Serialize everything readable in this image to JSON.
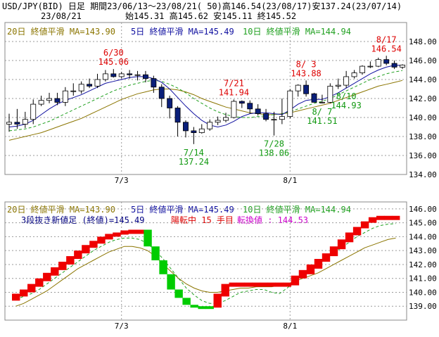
{
  "header": {
    "line1": "USD/JPY(BID) 日足 期間23/06/13～23/08/21( 50)高146.54(23/08/17)安137.24(23/07/14)",
    "date": "23/08/21",
    "ohlc": "始145.31 高145.62 安145.11 終145.52"
  },
  "colors": {
    "ma20": "#8B7500",
    "ma5": "#1010A0",
    "ma10": "#20A020",
    "up_candle": "#ffffff",
    "down_candle": "#0A1F7A",
    "up_brick": "#EE0000",
    "down_brick": "#00CC00",
    "annot_high": "#DD0000",
    "annot_low": "#119911",
    "status": "#DD0000",
    "turn": "#CC00CC"
  },
  "top_chart": {
    "legend": {
      "ma20": "20日 終値平滑 MA=143.90",
      "ma5": "5日 終値平滑 MA=145.49",
      "ma10": "10日 終値平滑 MA=144.94"
    },
    "ylim": [
      134,
      150
    ],
    "yticks": [
      "134.00",
      "136.00",
      "138.00",
      "140.00",
      "142.00",
      "144.00",
      "146.00",
      "148.00"
    ],
    "xticks": [
      "7/3",
      "8/1"
    ],
    "annotations": [
      {
        "date": "6/30",
        "value": "145.06",
        "kind": "high"
      },
      {
        "date": "7/21",
        "value": "141.94",
        "kind": "high"
      },
      {
        "date": "8/ 3",
        "value": "143.88",
        "kind": "high"
      },
      {
        "date": "8/17",
        "value": "146.54",
        "kind": "high"
      },
      {
        "date": "7/14",
        "value": "137.24",
        "kind": "low"
      },
      {
        "date": "7/28",
        "value": "138.06",
        "kind": "low"
      },
      {
        "date": "8/ 7",
        "value": "141.51",
        "kind": "low"
      },
      {
        "date": "8/10",
        "value": "144.93",
        "kind": "low"
      }
    ]
  },
  "bottom_chart": {
    "legend": {
      "ma20": "20日 終値平滑 MA=143.90",
      "ma5": "5日 終値平滑 MA=145.49",
      "ma10": "10日 終値平滑 MA=144.94"
    },
    "status_prefix": "3段抜き新値足 (終値)=145.49",
    "status_mid": "陽転中 15 手目",
    "status_turn": "転換値 : 144.53",
    "ylim": [
      138,
      146.5
    ],
    "yticks": [
      "139.00",
      "140.00",
      "141.00",
      "142.00",
      "143.00",
      "144.00",
      "145.00",
      "146.00"
    ],
    "xticks": [
      "7/3",
      "8/1"
    ]
  },
  "chart_data": [
    {
      "type": "candlestick",
      "title": "USD/JPY(BID) 日足",
      "dates": [
        "6/13",
        "6/14",
        "6/15",
        "6/16",
        "6/19",
        "6/20",
        "6/21",
        "6/22",
        "6/23",
        "6/26",
        "6/27",
        "6/28",
        "6/29",
        "6/30",
        "7/3",
        "7/4",
        "7/5",
        "7/6",
        "7/7",
        "7/10",
        "7/11",
        "7/12",
        "7/13",
        "7/14",
        "7/17",
        "7/18",
        "7/19",
        "7/20",
        "7/21",
        "7/24",
        "7/25",
        "7/26",
        "7/27",
        "7/28",
        "7/31",
        "8/1",
        "8/2",
        "8/3",
        "8/4",
        "8/7",
        "8/8",
        "8/9",
        "8/10",
        "8/11",
        "8/14",
        "8/15",
        "8/16",
        "8/17",
        "8/18",
        "8/21"
      ],
      "open": [
        139.3,
        139.5,
        139.3,
        139.8,
        141.4,
        141.8,
        142.0,
        141.6,
        142.8,
        142.8,
        143.5,
        143.3,
        144.0,
        144.6,
        144.3,
        144.6,
        144.5,
        144.5,
        144.1,
        143.2,
        142.0,
        141.0,
        139.5,
        138.6,
        138.4,
        138.8,
        139.5,
        139.7,
        140.0,
        141.7,
        141.5,
        140.9,
        140.4,
        139.8,
        139.8,
        140.1,
        142.8,
        143.4,
        142.5,
        141.6,
        141.6,
        143.3,
        143.4,
        144.3,
        144.7,
        145.4,
        145.4,
        146.1,
        145.7,
        145.3
      ],
      "high": [
        140.4,
        140.9,
        140.6,
        141.9,
        142.3,
        142.6,
        142.6,
        143.2,
        143.6,
        143.8,
        144.1,
        144.6,
        145.0,
        145.1,
        144.8,
        145.0,
        144.9,
        144.9,
        144.4,
        143.5,
        142.3,
        141.2,
        139.7,
        139.0,
        139.3,
        139.8,
        140.1,
        140.5,
        141.9,
        141.8,
        141.8,
        141.4,
        140.9,
        140.6,
        142.0,
        143.0,
        143.5,
        143.9,
        142.6,
        142.4,
        143.6,
        144.1,
        144.9,
        145.0,
        145.5,
        145.9,
        146.3,
        146.5,
        146.0,
        145.6
      ],
      "low": [
        138.5,
        138.8,
        138.9,
        139.3,
        141.2,
        141.5,
        141.3,
        141.2,
        142.3,
        142.5,
        143.1,
        143.1,
        143.8,
        144.2,
        144.1,
        144.1,
        143.9,
        143.7,
        142.6,
        141.1,
        139.9,
        138.0,
        137.9,
        137.2,
        138.3,
        138.6,
        139.2,
        139.5,
        139.9,
        141.0,
        140.4,
        140.2,
        139.6,
        138.1,
        139.3,
        139.9,
        142.2,
        142.2,
        141.6,
        141.5,
        141.5,
        143.0,
        143.1,
        144.1,
        144.5,
        145.2,
        145.3,
        145.5,
        145.1,
        145.1
      ],
      "close": [
        139.5,
        139.3,
        139.8,
        141.4,
        141.8,
        142.0,
        141.6,
        142.8,
        142.8,
        143.5,
        143.3,
        144.0,
        144.6,
        144.3,
        144.6,
        144.5,
        144.5,
        144.1,
        143.2,
        142.0,
        141.0,
        139.5,
        138.6,
        138.4,
        138.8,
        139.5,
        139.7,
        140.0,
        141.7,
        141.5,
        140.9,
        140.4,
        139.8,
        139.8,
        140.1,
        142.8,
        143.4,
        142.5,
        141.6,
        141.6,
        143.3,
        143.4,
        144.3,
        144.7,
        145.4,
        145.4,
        146.1,
        145.7,
        145.3,
        145.52
      ],
      "ma5": [
        139.0,
        139.1,
        139.3,
        139.7,
        140.3,
        140.9,
        141.4,
        141.8,
        142.1,
        142.4,
        142.8,
        143.2,
        143.6,
        143.8,
        144.0,
        144.2,
        144.3,
        144.3,
        144.1,
        143.7,
        143.0,
        142.1,
        141.2,
        140.4,
        139.7,
        139.2,
        139.0,
        139.2,
        139.6,
        140.1,
        140.4,
        140.5,
        140.5,
        140.4,
        140.3,
        140.8,
        141.4,
        141.8,
        141.9,
        141.9,
        142.2,
        142.6,
        143.1,
        143.6,
        144.1,
        144.6,
        145.0,
        145.3,
        145.5,
        145.49
      ],
      "ma10": [
        138.6,
        138.7,
        138.8,
        139.0,
        139.3,
        139.6,
        140.0,
        140.4,
        140.8,
        141.2,
        141.6,
        142.0,
        142.4,
        142.8,
        143.1,
        143.4,
        143.6,
        143.8,
        143.9,
        143.8,
        143.5,
        143.1,
        142.6,
        142.0,
        141.5,
        141.0,
        140.6,
        140.3,
        140.1,
        140.0,
        140.0,
        140.1,
        140.2,
        140.3,
        140.4,
        140.6,
        140.9,
        141.2,
        141.5,
        141.7,
        142.0,
        142.4,
        142.8,
        143.2,
        143.6,
        144.0,
        144.3,
        144.6,
        144.8,
        144.94
      ],
      "ma20": [
        137.6,
        137.8,
        138.0,
        138.2,
        138.4,
        138.7,
        139.0,
        139.3,
        139.6,
        139.9,
        140.3,
        140.7,
        141.1,
        141.5,
        141.9,
        142.2,
        142.5,
        142.7,
        142.9,
        143.0,
        143.0,
        142.9,
        142.7,
        142.4,
        142.0,
        141.7,
        141.4,
        141.1,
        140.9,
        140.7,
        140.5,
        140.4,
        140.3,
        140.3,
        140.4,
        140.5,
        140.7,
        140.9,
        141.1,
        141.3,
        141.5,
        141.8,
        142.1,
        142.4,
        142.7,
        143.0,
        143.3,
        143.5,
        143.7,
        143.9
      ],
      "ylim": [
        134,
        150
      ]
    },
    {
      "type": "bar",
      "subtype": "new price three-line break (3段抜き新値足)",
      "bricks": [
        {
          "i": 0,
          "lo": 139.4,
          "hi": 139.9,
          "up": true
        },
        {
          "i": 1,
          "lo": 139.7,
          "hi": 140.2,
          "up": true
        },
        {
          "i": 2,
          "lo": 140.0,
          "hi": 140.6,
          "up": true
        },
        {
          "i": 3,
          "lo": 140.4,
          "hi": 141.0,
          "up": true
        },
        {
          "i": 4,
          "lo": 140.8,
          "hi": 141.4,
          "up": true
        },
        {
          "i": 5,
          "lo": 141.2,
          "hi": 141.8,
          "up": true
        },
        {
          "i": 6,
          "lo": 141.6,
          "hi": 142.2,
          "up": true
        },
        {
          "i": 7,
          "lo": 142.0,
          "hi": 142.6,
          "up": true
        },
        {
          "i": 8,
          "lo": 142.4,
          "hi": 143.0,
          "up": true
        },
        {
          "i": 9,
          "lo": 142.8,
          "hi": 143.4,
          "up": true
        },
        {
          "i": 10,
          "lo": 143.2,
          "hi": 143.7,
          "up": true
        },
        {
          "i": 11,
          "lo": 143.5,
          "hi": 144.0,
          "up": true
        },
        {
          "i": 12,
          "lo": 143.8,
          "hi": 144.2,
          "up": true
        },
        {
          "i": 13,
          "lo": 144.0,
          "hi": 144.3,
          "up": true
        },
        {
          "i": 14,
          "lo": 144.15,
          "hi": 144.45,
          "up": true
        },
        {
          "i": 15,
          "lo": 144.2,
          "hi": 144.5,
          "up": true
        },
        {
          "i": 16,
          "lo": 144.2,
          "hi": 144.5,
          "up": true
        },
        {
          "i": 17,
          "lo": 143.3,
          "hi": 144.5,
          "up": false
        },
        {
          "i": 18,
          "lo": 142.3,
          "hi": 143.3,
          "up": false
        },
        {
          "i": 19,
          "lo": 141.3,
          "hi": 142.3,
          "up": false
        },
        {
          "i": 20,
          "lo": 140.2,
          "hi": 141.3,
          "up": false
        },
        {
          "i": 21,
          "lo": 139.6,
          "hi": 140.2,
          "up": false
        },
        {
          "i": 22,
          "lo": 139.1,
          "hi": 139.6,
          "up": false
        },
        {
          "i": 23,
          "lo": 138.9,
          "hi": 139.1,
          "up": false
        },
        {
          "i": 24,
          "lo": 138.8,
          "hi": 139.0,
          "up": false
        },
        {
          "i": 25,
          "lo": 138.8,
          "hi": 139.0,
          "up": false
        },
        {
          "i": 26,
          "lo": 138.9,
          "hi": 139.9,
          "up": true
        },
        {
          "i": 27,
          "lo": 139.7,
          "hi": 140.6,
          "up": true
        },
        {
          "i": 28,
          "lo": 140.4,
          "hi": 140.7,
          "up": true
        },
        {
          "i": 29,
          "lo": 140.4,
          "hi": 140.7,
          "up": true
        },
        {
          "i": 30,
          "lo": 140.4,
          "hi": 140.7,
          "up": true
        },
        {
          "i": 31,
          "lo": 140.4,
          "hi": 140.7,
          "up": true
        },
        {
          "i": 32,
          "lo": 140.4,
          "hi": 140.7,
          "up": true
        },
        {
          "i": 33,
          "lo": 140.4,
          "hi": 140.7,
          "up": true
        },
        {
          "i": 34,
          "lo": 140.4,
          "hi": 140.7,
          "up": true
        },
        {
          "i": 35,
          "lo": 140.4,
          "hi": 140.7,
          "up": true
        },
        {
          "i": 36,
          "lo": 140.5,
          "hi": 141.2,
          "up": true
        },
        {
          "i": 37,
          "lo": 141.0,
          "hi": 141.6,
          "up": true
        },
        {
          "i": 38,
          "lo": 141.3,
          "hi": 142.0,
          "up": true
        },
        {
          "i": 39,
          "lo": 141.7,
          "hi": 142.4,
          "up": true
        },
        {
          "i": 40,
          "lo": 142.2,
          "hi": 142.8,
          "up": true
        },
        {
          "i": 41,
          "lo": 142.6,
          "hi": 143.3,
          "up": true
        },
        {
          "i": 42,
          "lo": 143.1,
          "hi": 143.8,
          "up": true
        },
        {
          "i": 43,
          "lo": 143.6,
          "hi": 144.3,
          "up": true
        },
        {
          "i": 44,
          "lo": 144.1,
          "hi": 144.7,
          "up": true
        },
        {
          "i": 45,
          "lo": 144.6,
          "hi": 145.1,
          "up": true
        },
        {
          "i": 46,
          "lo": 145.0,
          "hi": 145.4,
          "up": true
        },
        {
          "i": 47,
          "lo": 145.2,
          "hi": 145.5,
          "up": true
        },
        {
          "i": 48,
          "lo": 145.2,
          "hi": 145.5,
          "up": true
        },
        {
          "i": 49,
          "lo": 145.2,
          "hi": 145.5,
          "up": true
        }
      ],
      "ma5": [
        139.5,
        139.7,
        139.9,
        140.2,
        140.6,
        141.0,
        141.4,
        141.8,
        142.2,
        142.6,
        143.0,
        143.3,
        143.6,
        143.8,
        143.9,
        143.9,
        143.8,
        143.5,
        143.0,
        142.4,
        141.7,
        141.0,
        140.3,
        139.8,
        139.4,
        139.2,
        139.2,
        139.4,
        139.7,
        140.0,
        140.1,
        140.2,
        140.2,
        140.0,
        139.9,
        140.3,
        140.8,
        141.3,
        141.7,
        142.0,
        142.4,
        142.8,
        143.2,
        143.6,
        144.0,
        144.3,
        144.6,
        144.8,
        144.9,
        144.94
      ],
      "ma20": [
        139.0,
        139.2,
        139.5,
        139.8,
        140.1,
        140.5,
        140.9,
        141.3,
        141.7,
        142.0,
        142.3,
        142.6,
        142.9,
        143.1,
        143.3,
        143.3,
        143.2,
        143.0,
        142.6,
        142.0,
        141.5,
        141.0,
        140.6,
        140.3,
        140.1,
        140.0,
        140.0,
        140.1,
        140.2,
        140.3,
        140.3,
        140.4,
        140.4,
        140.4,
        140.5,
        140.6,
        140.8,
        141.0,
        141.2,
        141.4,
        141.7,
        142.0,
        142.3,
        142.6,
        142.9,
        143.2,
        143.4,
        143.6,
        143.8,
        143.9
      ],
      "ylim": [
        138,
        146.5
      ]
    }
  ]
}
